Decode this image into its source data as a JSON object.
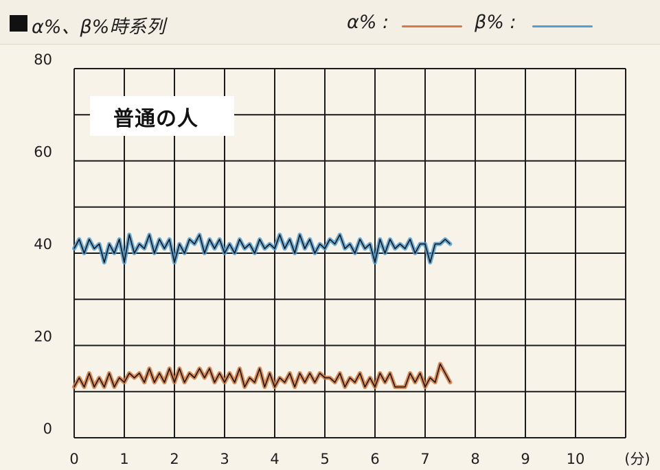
{
  "chart_data": {
    "type": "line",
    "title": "α%、β%時系列",
    "annotation": "普通の人",
    "xlabel": "(分)",
    "ylabel": "",
    "xlim": [
      0,
      11
    ],
    "ylim": [
      0,
      80
    ],
    "x_ticks": [
      "0",
      "1",
      "2",
      "3",
      "4",
      "5",
      "6",
      "7",
      "8",
      "9",
      "10"
    ],
    "y_ticks": [
      "0",
      "20",
      "40",
      "60",
      "80"
    ],
    "x_grid_step": 1,
    "y_grid_step": 10,
    "grid": true,
    "legend_position": "top-right",
    "series": [
      {
        "name": "α% :",
        "color": "#d9783a",
        "x": [
          0.0,
          0.1,
          0.2,
          0.3,
          0.4,
          0.5,
          0.6,
          0.7,
          0.8,
          0.9,
          1.0,
          1.1,
          1.2,
          1.3,
          1.4,
          1.5,
          1.6,
          1.7,
          1.8,
          1.9,
          2.0,
          2.1,
          2.2,
          2.3,
          2.4,
          2.5,
          2.6,
          2.7,
          2.8,
          2.9,
          3.0,
          3.1,
          3.2,
          3.3,
          3.4,
          3.5,
          3.6,
          3.7,
          3.8,
          3.9,
          4.0,
          4.1,
          4.2,
          4.3,
          4.4,
          4.5,
          4.6,
          4.7,
          4.8,
          4.9,
          5.0,
          5.1,
          5.2,
          5.3,
          5.4,
          5.5,
          5.6,
          5.7,
          5.8,
          5.9,
          6.0,
          6.1,
          6.2,
          6.3,
          6.4,
          6.5,
          6.6,
          6.7,
          6.8,
          6.9,
          7.0,
          7.1,
          7.2,
          7.3,
          7.4,
          7.5
        ],
        "values": [
          11,
          13,
          11,
          14,
          11,
          13,
          11,
          14,
          11,
          13,
          12,
          14,
          13,
          14,
          12,
          15,
          12,
          14,
          12,
          15,
          12,
          15,
          12,
          14,
          13,
          15,
          13,
          15,
          12,
          14,
          12,
          14,
          12,
          15,
          11,
          13,
          12,
          15,
          11,
          14,
          11,
          13,
          12,
          14,
          11,
          14,
          12,
          14,
          12,
          14,
          13,
          13,
          12,
          14,
          11,
          13,
          12,
          14,
          11,
          13,
          11,
          14,
          12,
          14,
          11,
          11,
          11,
          14,
          12,
          14,
          11,
          13,
          12,
          16,
          14,
          12
        ]
      },
      {
        "name": "β% :",
        "color": "#4f9fd6",
        "x": [
          0.0,
          0.1,
          0.2,
          0.3,
          0.4,
          0.5,
          0.6,
          0.7,
          0.8,
          0.9,
          1.0,
          1.1,
          1.2,
          1.3,
          1.4,
          1.5,
          1.6,
          1.7,
          1.8,
          1.9,
          2.0,
          2.1,
          2.2,
          2.3,
          2.4,
          2.5,
          2.6,
          2.7,
          2.8,
          2.9,
          3.0,
          3.1,
          3.2,
          3.3,
          3.4,
          3.5,
          3.6,
          3.7,
          3.8,
          3.9,
          4.0,
          4.1,
          4.2,
          4.3,
          4.4,
          4.5,
          4.6,
          4.7,
          4.8,
          4.9,
          5.0,
          5.1,
          5.2,
          5.3,
          5.4,
          5.5,
          5.6,
          5.7,
          5.8,
          5.9,
          6.0,
          6.1,
          6.2,
          6.3,
          6.4,
          6.5,
          6.6,
          6.7,
          6.8,
          6.9,
          7.0,
          7.1,
          7.2,
          7.3,
          7.4,
          7.5
        ],
        "values": [
          41,
          43,
          40,
          43,
          41,
          42,
          38,
          42,
          40,
          43,
          38,
          44,
          40,
          42,
          41,
          44,
          40,
          43,
          41,
          43,
          38,
          42,
          40,
          43,
          42,
          44,
          40,
          43,
          41,
          43,
          40,
          42,
          40,
          43,
          41,
          42,
          40,
          43,
          41,
          42,
          41,
          44,
          41,
          43,
          40,
          44,
          41,
          43,
          40,
          42,
          41,
          43,
          42,
          44,
          41,
          42,
          40,
          43,
          41,
          42,
          38,
          43,
          40,
          43,
          41,
          42,
          41,
          43,
          40,
          42,
          42,
          38,
          42,
          42,
          43,
          42
        ]
      }
    ]
  }
}
